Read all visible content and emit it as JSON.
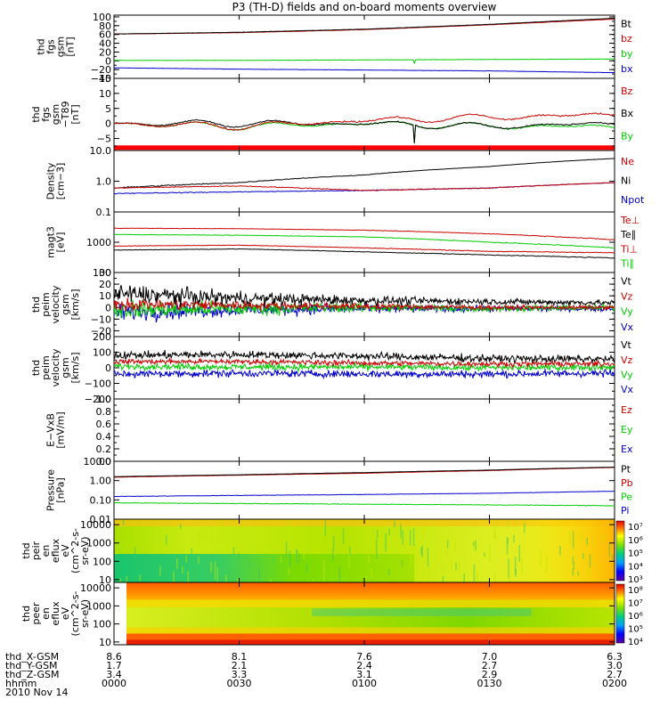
{
  "title": "P3 (TH-D) fields and on-board moments overview",
  "panels": [
    {
      "id": "fgs",
      "label_lines": [
        "thd",
        "fgs",
        "gsm",
        "[nT]"
      ],
      "ticks": [
        {
          "v": 100,
          "t": "100"
        },
        {
          "v": 80,
          "t": "80"
        },
        {
          "v": 60,
          "t": "60"
        },
        {
          "v": 40,
          "t": "40"
        },
        {
          "v": 20,
          "t": "20"
        },
        {
          "v": 0,
          "t": "0"
        },
        {
          "v": -20,
          "t": "−20"
        },
        {
          "v": -40,
          "t": "−40"
        }
      ],
      "ylim": [
        -40,
        104
      ],
      "scale": "linear",
      "legend": [
        {
          "t": "Bt",
          "c": "#000000"
        },
        {
          "t": "bz",
          "c": "#cc0000"
        },
        {
          "t": "by",
          "c": "#00cc00"
        },
        {
          "t": "bx",
          "c": "#0000cc"
        }
      ]
    },
    {
      "id": "fgs_dtrend",
      "label_lines": [
        "thd",
        "fgs",
        "gsm",
        "−T89",
        "[nT]"
      ],
      "ticks": [
        {
          "v": 15,
          "t": "15"
        },
        {
          "v": 10,
          "t": "10"
        },
        {
          "v": 5,
          "t": "5"
        },
        {
          "v": 0,
          "t": "0"
        },
        {
          "v": -5,
          "t": "−5"
        }
      ],
      "ylim": [
        -9,
        15
      ],
      "scale": "linear",
      "legend": [
        {
          "t": "Bz",
          "c": "#cc0000"
        },
        {
          "t": "Bx",
          "c": "#000000"
        },
        {
          "t": "By",
          "c": "#00cc00"
        }
      ]
    },
    {
      "id": "density",
      "label_lines": [
        "Density",
        "[cm−3]"
      ],
      "ticks": [
        {
          "v": 10,
          "t": "10.0"
        },
        {
          "v": 1,
          "t": "1.0"
        },
        {
          "v": 0.1,
          "t": "0.1"
        }
      ],
      "ylim": [
        0.1,
        10
      ],
      "scale": "log",
      "legend": [
        {
          "t": "Ne",
          "c": "#cc0000"
        },
        {
          "t": "Ni",
          "c": "#000000"
        },
        {
          "t": "Npot",
          "c": "#0000cc"
        }
      ]
    },
    {
      "id": "temp",
      "label_lines": [
        "magt3",
        "[eV]"
      ],
      "ticks": [
        {
          "v": 1000,
          "t": "1000"
        },
        {
          "v": 100,
          "t": "100"
        }
      ],
      "ylim": [
        100,
        10000
      ],
      "scale": "log",
      "legend": [
        {
          "t": "Te⊥",
          "c": "#cc0000"
        },
        {
          "t": "Te∥",
          "c": "#000000"
        },
        {
          "t": "Ti⊥",
          "c": "#cc0000"
        },
        {
          "t": "Ti∥",
          "c": "#00cc00"
        }
      ]
    },
    {
      "id": "vel_e",
      "label_lines": [
        "thd",
        "peim",
        "velocity",
        "gsm",
        "[km/s]"
      ],
      "ticks": [
        {
          "v": 30,
          "t": "30"
        },
        {
          "v": 20,
          "t": "20"
        },
        {
          "v": 10,
          "t": "10"
        },
        {
          "v": 0,
          "t": "0"
        },
        {
          "v": -10,
          "t": "−10"
        },
        {
          "v": -20,
          "t": "−20"
        }
      ],
      "ylim": [
        -25,
        30
      ],
      "scale": "linear",
      "legend": [
        {
          "t": "Vt",
          "c": "#000000"
        },
        {
          "t": "Vz",
          "c": "#cc0000"
        },
        {
          "t": "Vy",
          "c": "#00cc00"
        },
        {
          "t": "Vx",
          "c": "#0000cc"
        }
      ]
    },
    {
      "id": "vel_i",
      "label_lines": [
        "thd",
        "peim",
        "velocity",
        "gsm",
        "[km/s]"
      ],
      "ticks": [
        {
          "v": 200,
          "t": "200"
        },
        {
          "v": 100,
          "t": "100"
        },
        {
          "v": 0,
          "t": "0"
        },
        {
          "v": -100,
          "t": "−100"
        },
        {
          "v": -200,
          "t": "−200"
        }
      ],
      "ylim": [
        -200,
        200
      ],
      "scale": "linear",
      "legend": [
        {
          "t": "Vt",
          "c": "#000000"
        },
        {
          "t": "Vz",
          "c": "#cc0000"
        },
        {
          "t": "Vy",
          "c": "#00cc00"
        },
        {
          "t": "Vx",
          "c": "#0000cc"
        }
      ]
    },
    {
      "id": "efield",
      "label_lines": [
        "E−VxB",
        "[mV/m]"
      ],
      "ticks": [
        {
          "v": 1.0,
          "t": "1.0"
        },
        {
          "v": 0.8,
          "t": "0.8"
        },
        {
          "v": 0.6,
          "t": "0.6"
        },
        {
          "v": 0.4,
          "t": "0.4"
        },
        {
          "v": 0.2,
          "t": "0.2"
        },
        {
          "v": 0.0,
          "t": "0.0"
        }
      ],
      "ylim": [
        0,
        1
      ],
      "scale": "linear",
      "legend": [
        {
          "t": "Ez",
          "c": "#cc0000"
        },
        {
          "t": "Ey",
          "c": "#00cc00"
        },
        {
          "t": "Ex",
          "c": "#0000cc"
        }
      ]
    },
    {
      "id": "pressure",
      "label_lines": [
        "Pressure",
        "[nPa]"
      ],
      "ticks": [
        {
          "v": 10,
          "t": "10.00"
        },
        {
          "v": 1,
          "t": "1.00"
        },
        {
          "v": 0.1,
          "t": "0.10"
        },
        {
          "v": 0.01,
          "t": "0.01"
        }
      ],
      "ylim": [
        0.01,
        10
      ],
      "scale": "log",
      "legend": [
        {
          "t": "Pt",
          "c": "#000000"
        },
        {
          "t": "Pb",
          "c": "#cc0000"
        },
        {
          "t": "Pe",
          "c": "#00cc00"
        },
        {
          "t": "Pi",
          "c": "#0000cc"
        }
      ]
    },
    {
      "id": "spec_i",
      "label_lines": [
        "thd",
        "peir",
        "en",
        "eflux",
        "eV",
        "(cm^2-s-",
        "sr-eV)"
      ],
      "ticks": [
        {
          "v": 10000,
          "t": "10000"
        },
        {
          "v": 1000,
          "t": "1000"
        },
        {
          "v": 100,
          "t": "100"
        },
        {
          "v": 10,
          "t": "10"
        }
      ],
      "ylim": [
        7,
        20000
      ],
      "scale": "log",
      "colorbar": [
        "10⁷",
        "10⁶",
        "10⁵",
        "10⁴",
        "10³"
      ]
    },
    {
      "id": "spec_e",
      "label_lines": [
        "thd",
        "peer",
        "en",
        "eflux",
        "eV",
        "(cm^2-s-",
        "sr-eV)"
      ],
      "ticks": [
        {
          "v": 10000,
          "t": "10000"
        },
        {
          "v": 1000,
          "t": "1000"
        },
        {
          "v": 100,
          "t": "100"
        },
        {
          "v": 10,
          "t": "10"
        }
      ],
      "ylim": [
        7,
        20000
      ],
      "scale": "log",
      "colorbar": [
        "10⁸",
        "10⁷",
        "10⁶",
        "10⁵",
        "10⁴"
      ]
    }
  ],
  "x_axis": {
    "row_labels": [
      "thd_X-GSM",
      "thd_Y-GSM",
      "thd_Z-GSM",
      "hhmm",
      "2010 Nov 14"
    ],
    "columns": [
      {
        "x": 8.6,
        "y": 1.7,
        "z": 3.4,
        "t": "0000"
      },
      {
        "x": 8.1,
        "y": 2.1,
        "z": 3.3,
        "t": "0030"
      },
      {
        "x": 7.6,
        "y": 2.4,
        "z": 3.1,
        "t": "0100"
      },
      {
        "x": 7.0,
        "y": 2.7,
        "z": 2.9,
        "t": "0130"
      },
      {
        "x": 6.3,
        "y": 3.0,
        "z": 2.7,
        "t": "0200"
      }
    ]
  },
  "chart_data": {
    "type": "line",
    "title": "P3 (TH-D) fields and on-board moments overview",
    "x_label": "hhmm",
    "x_ticks": [
      "0000",
      "0030",
      "0100",
      "0130",
      "0200"
    ],
    "panels": [
      {
        "name": "thd fgs gsm [nT]",
        "ylim": [
          -40,
          104
        ],
        "series": [
          {
            "name": "Bt",
            "x": [
              "0000",
              "0030",
              "0100",
              "0130",
              "0200"
            ],
            "values": [
              61,
              65,
              72,
              83,
              97
            ]
          },
          {
            "name": "bz",
            "x": [
              "0000",
              "0030",
              "0100",
              "0130",
              "0200"
            ],
            "values": [
              61,
              64,
              71,
              82,
              95
            ]
          },
          {
            "name": "by",
            "x": [
              "0000",
              "0030",
              "0100",
              "0130",
              "0200"
            ],
            "values": [
              1,
              1,
              2,
              3,
              4
            ]
          },
          {
            "name": "bx",
            "x": [
              "0000",
              "0030",
              "0100",
              "0130",
              "0200"
            ],
            "values": [
              -16,
              -19,
              -21,
              -23,
              -27
            ]
          }
        ]
      },
      {
        "name": "thd fgs gsm -T89 [nT]",
        "ylim": [
          -9,
          15
        ],
        "series": [
          {
            "name": "Bz",
            "x": [
              "0000",
              "0030",
              "0100",
              "0130",
              "0200"
            ],
            "values": [
              0,
              -1,
              1,
              2,
              3
            ]
          },
          {
            "name": "Bx",
            "x": [
              "0000",
              "0030",
              "0100",
              "0130",
              "0200"
            ],
            "values": [
              0,
              0,
              0,
              -1,
              0
            ]
          },
          {
            "name": "By",
            "x": [
              "0000",
              "0030",
              "0100",
              "0130",
              "0200"
            ],
            "values": [
              0,
              -1,
              0,
              -1,
              -1
            ]
          }
        ]
      },
      {
        "name": "Density [cm-3]",
        "scale": "log",
        "ylim": [
          0.1,
          10
        ],
        "series": [
          {
            "name": "Ne",
            "x": [
              "0000",
              "0030",
              "0100",
              "0130",
              "0200"
            ],
            "values": [
              0.6,
              0.7,
              0.5,
              0.6,
              0.9
            ]
          },
          {
            "name": "Ni",
            "x": [
              "0000",
              "0030",
              "0100",
              "0130",
              "0200"
            ],
            "values": [
              0.6,
              0.9,
              1.6,
              3.0,
              5.5
            ]
          },
          {
            "name": "Npot",
            "x": [
              "0000",
              "0030",
              "0100",
              "0130",
              "0200"
            ],
            "values": [
              0.4,
              0.45,
              0.5,
              0.6,
              0.9
            ]
          }
        ]
      },
      {
        "name": "magt3 [eV]",
        "scale": "log",
        "ylim": [
          100,
          10000
        ],
        "series": [
          {
            "name": "Te⊥",
            "x": [
              "0000",
              "0030",
              "0100",
              "0130",
              "0200"
            ],
            "values": [
              750,
              800,
              650,
              500,
              450
            ]
          },
          {
            "name": "Te∥",
            "x": [
              "0000",
              "0030",
              "0100",
              "0130",
              "0200"
            ],
            "values": [
              550,
              600,
              480,
              380,
              300
            ]
          },
          {
            "name": "Ti⊥",
            "x": [
              "0000",
              "0030",
              "0100",
              "0130",
              "0200"
            ],
            "values": [
              2900,
              2800,
              2500,
              1900,
              1200
            ]
          },
          {
            "name": "Ti∥",
            "x": [
              "0000",
              "0030",
              "0100",
              "0130",
              "0200"
            ],
            "values": [
              1800,
              1700,
              1500,
              1000,
              650
            ]
          }
        ]
      },
      {
        "name": "thd peim velocity gsm [km/s]",
        "ylim": [
          -25,
          30
        ],
        "series": [
          {
            "name": "Vt",
            "x": [
              "0000",
              "0030",
              "0100",
              "0130",
              "0200"
            ],
            "values": [
              12,
              8,
              6,
              5,
              4
            ]
          },
          {
            "name": "Vz",
            "x": [
              "0000",
              "0030",
              "0100",
              "0130",
              "0200"
            ],
            "values": [
              3,
              2,
              1,
              0,
              0
            ]
          },
          {
            "name": "Vy",
            "x": [
              "0000",
              "0030",
              "0100",
              "0130",
              "0200"
            ],
            "values": [
              -2,
              -1,
              0,
              -1,
              0
            ]
          },
          {
            "name": "Vx",
            "x": [
              "0000",
              "0030",
              "0100",
              "0130",
              "0200"
            ],
            "values": [
              -4,
              -2,
              -1,
              -1,
              -1
            ]
          }
        ]
      },
      {
        "name": "thd peim velocity gsm [km/s] (ions)",
        "ylim": [
          -200,
          200
        ],
        "series": [
          {
            "name": "Vt",
            "x": [
              "0000",
              "0030",
              "0100",
              "0130",
              "0200"
            ],
            "values": [
              80,
              85,
              75,
              60,
              55
            ]
          },
          {
            "name": "Vz",
            "x": [
              "0000",
              "0030",
              "0100",
              "0130",
              "0200"
            ],
            "values": [
              40,
              40,
              30,
              25,
              25
            ]
          },
          {
            "name": "Vy",
            "x": [
              "0000",
              "0030",
              "0100",
              "0130",
              "0200"
            ],
            "values": [
              10,
              5,
              5,
              0,
              5
            ]
          },
          {
            "name": "Vx",
            "x": [
              "0000",
              "0030",
              "0100",
              "0130",
              "0200"
            ],
            "values": [
              -40,
              -35,
              -40,
              -40,
              -35
            ]
          }
        ]
      },
      {
        "name": "E-VxB [mV/m]",
        "ylim": [
          0,
          1
        ],
        "series": []
      },
      {
        "name": "Pressure [nPa]",
        "scale": "log",
        "ylim": [
          0.01,
          10
        ],
        "series": [
          {
            "name": "Pt",
            "x": [
              "0000",
              "0030",
              "0100",
              "0130",
              "0200"
            ],
            "values": [
              1.6,
              2.0,
              2.6,
              3.5,
              5.0
            ]
          },
          {
            "name": "Pb",
            "x": [
              "0000",
              "0030",
              "0100",
              "0130",
              "0200"
            ],
            "values": [
              1.5,
              1.9,
              2.4,
              3.3,
              4.8
            ]
          },
          {
            "name": "Pe",
            "x": [
              "0000",
              "0030",
              "0100",
              "0130",
              "0200"
            ],
            "values": [
              0.07,
              0.065,
              0.06,
              0.055,
              0.05
            ]
          },
          {
            "name": "Pi",
            "x": [
              "0000",
              "0030",
              "0100",
              "0130",
              "0200"
            ],
            "values": [
              0.15,
              0.17,
              0.19,
              0.22,
              0.28
            ]
          }
        ]
      }
    ]
  },
  "colors": {
    "black": "#000000",
    "red": "#cc0000",
    "green": "#00cc00",
    "blue": "#0000cc"
  }
}
